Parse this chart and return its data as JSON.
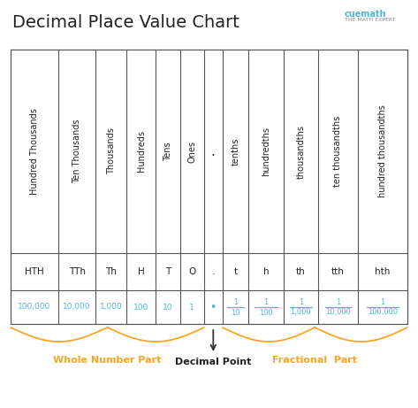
{
  "title": "Decimal Place Value Chart",
  "background_color": "#ffffff",
  "title_color": "#222222",
  "title_fontsize": 14,
  "table_border_color": "#555555",
  "header_row1": [
    "Hundred Thousands",
    "Ten Thousands",
    "Thousands",
    "Hundreds",
    "Tens",
    "Ones",
    ".",
    "tenths",
    "hundredths",
    "thousandths",
    "ten thousandths",
    "hundred thousandths"
  ],
  "header_row2": [
    "HTH",
    "TTh",
    "Th",
    "H",
    "T",
    "O",
    ".",
    "t",
    "h",
    "th",
    "tth",
    "hth"
  ],
  "value_row": [
    "100,000",
    "10,000",
    "1,000",
    "100",
    "10",
    "1",
    "•",
    "1/10",
    "1/100",
    "1/1,000",
    "1/10,000",
    "1/100,000"
  ],
  "value_color": "#4db8d4",
  "label_whole": "Whole Number Part",
  "label_decimal": "Decimal Point",
  "label_fractional": "Fractional  Part",
  "label_color": "#f5a623",
  "dot_col": 6,
  "col_widths": [
    1.35,
    1.05,
    0.88,
    0.82,
    0.68,
    0.68,
    0.52,
    0.74,
    0.98,
    0.98,
    1.12,
    1.4
  ]
}
